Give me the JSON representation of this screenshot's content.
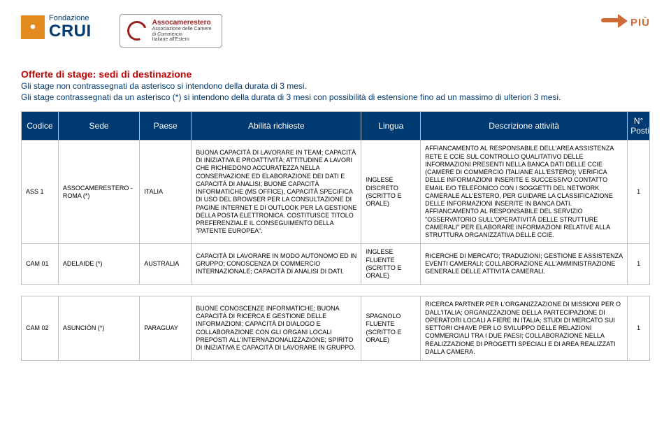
{
  "logos": {
    "crui_top": "Fondazione",
    "crui_big": "CRUI",
    "asso_title": "Assocamerestero",
    "asso_sub1": "Associazione delle Camere",
    "asso_sub2": "di Commercio",
    "asso_sub3": "Italiane all'Estero",
    "piu": "PIÙ"
  },
  "intro": {
    "title": "Offerte di stage: sedi di destinazione",
    "line1": "Gli stage non contrassegnati da asterisco si intendono della durata di 3 mesi.",
    "line2": "Gli stage contrassegnati da un asterisco (*) si intendono della durata di 3 mesi con possibilità di estensione fino ad un massimo di ulteriori 3 mesi."
  },
  "table": {
    "headers": {
      "codice": "Codice",
      "sede": "Sede",
      "paese": "Paese",
      "abilita": "Abilità richieste",
      "lingua": "Lingua",
      "descrizione": "Descrizione attività",
      "n": "N° Posti"
    },
    "rows": [
      {
        "codice": "ASS 1",
        "sede": "ASSOCAMERESTERO - ROMA (*)",
        "paese": "ITALIA",
        "abilita": "BUONA CAPACITÀ DI LAVORARE IN TEAM; CAPACITÀ DI INIZIATIVA E PROATTIVITÀ; ATTITUDINE A LAVORI CHE RICHIEDONO ACCURATEZZA NELLA CONSERVAZIONE ED ELABORAZIONE DEI DATI E CAPACITÀ DI ANALISI; BUONE CAPACITÀ INFORMATICHE (MS OFFICE), CAPACITÀ SPECIFICA DI USO DEL BROWSER PER LA CONSULTAZIONE DI PAGINE INTERNET E DI OUTLOOK PER LA GESTIONE DELLA POSTA ELETTRONICA. COSTITUISCE TITOLO PREFERENZIALE IL CONSEGUIMENTO DELLA \"PATENTE EUROPEA\".",
        "lingua": "INGLESE DISCRETO (SCRITTO E ORALE)",
        "descrizione": "AFFIANCAMENTO AL RESPONSABILE DELL'AREA ASSISTENZA RETE E CCIE SUL CONTROLLO QUALITATIVO DELLE INFORMAZIONI PRESENTI NELLA BANCA DATI DELLE CCIE (CAMERE DI COMMERCIO ITALIANE ALL'ESTERO); VERIFICA DELLE INFORMAZIONI INSERITE E SUCCESSIVO CONTATTO EMAIL E/O TELEFONICO CON I SOGGETTI DEL NETWORK CAMERALE ALL'ESTERO, PER GUIDARE LA CLASSIFICAZIONE DELLE INFORMAZIONI INSERITE IN BANCA DATI. AFFIANCAMENTO AL RESPONSABILE DEL SERVIZIO \"OSSERVATORIO SULL'OPERATIVITÀ DELLE STRUTTURE CAMERALI\" PER ELABORARE INFORMAZIONI RELATIVE ALLA STRUTTURA ORGANIZZATIVA DELLE CCIE.",
        "n": "1"
      },
      {
        "codice": "CAM 01",
        "sede": "ADELAIDE (*)",
        "paese": "AUSTRALIA",
        "abilita": "CAPACITÀ DI LAVORARE IN MODO AUTONOMO ED IN GRUPPO; CONOSCENZA DI COMMERCIO INTERNAZIONALE; CAPACITÀ DI ANALISI DI DATI.",
        "lingua": "INGLESE FLUENTE (SCRITTO E ORALE)",
        "descrizione": "RICERCHE DI MERCATO; TRADUZIONI; GESTIONE E ASSISTENZA EVENTI CAMERALI; COLLABORAZIONE ALL'AMMINISTRAZIONE GENERALE DELLE ATTIVITÀ CAMERALI.",
        "n": "1"
      },
      {
        "codice": "CAM 02",
        "sede": "ASUNCIÓN (*)",
        "paese": "PARAGUAY",
        "abilita": "BUONE CONOSCENZE INFORMATICHE; BUONA CAPACITÀ DI RICERCA E GESTIONE DELLE INFORMAZIONI; CAPACITÀ DI DIALOGO E COLLABORAZIONE CON GLI ORGANI LOCALI PREPOSTI ALL'INTERNAZIONALIZZAZIONE; SPIRITO DI INIZIATIVA E CAPACITÀ DI LAVORARE IN GRUPPO.",
        "lingua": "SPAGNOLO FLUENTE (SCRITTO E ORALE)",
        "descrizione": "RICERCA PARTNER PER L'ORGANIZZAZIONE DI MISSIONI PER O DALL'ITALIA; ORGANIZZAZIONE DELLA PARTECIPAZIONE DI OPERATORI LOCALI A FIERE IN ITALIA; STUDI DI MERCATO SUI SETTORI CHIAVE PER LO SVILUPPO DELLE RELAZIONI COMMERCIALI TRA I DUE PAESI; COLLABORAZIONE NELLA REALIZZAZIONE DI PROGETTI SPECIALI E DI AREA REALIZZATI DALLA CAMERA.",
        "n": "1"
      }
    ]
  }
}
